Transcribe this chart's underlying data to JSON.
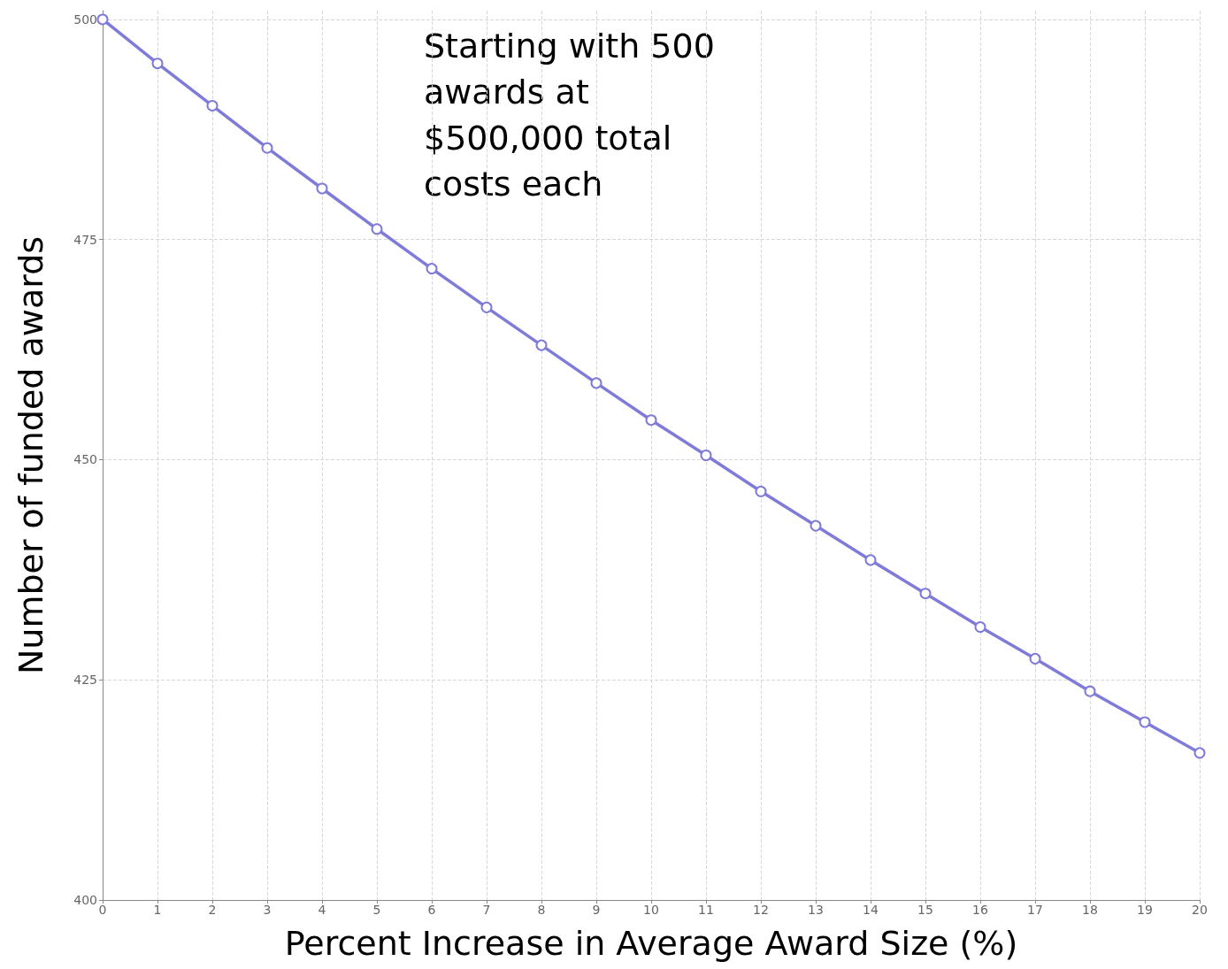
{
  "chart_data": {
    "type": "line",
    "xlabel": "Percent Increase in Average Award Size (%)",
    "ylabel": "Number of funded awards",
    "annotations": [
      "Starting with 500\nawards at\n$500,000 total\ncosts each"
    ],
    "x": [
      0,
      1,
      2,
      3,
      4,
      5,
      6,
      7,
      8,
      9,
      10,
      11,
      12,
      13,
      14,
      15,
      16,
      17,
      18,
      19,
      20
    ],
    "series": [
      {
        "color": "#7f7bd8",
        "values": [
          500,
          495.0,
          490.2,
          485.4,
          480.8,
          476.2,
          471.7,
          467.3,
          463.0,
          458.7,
          454.5,
          450.5,
          446.4,
          442.5,
          438.6,
          434.8,
          431.0,
          427.4,
          423.7,
          420.2,
          416.7
        ]
      }
    ],
    "xlim": [
      0,
      20
    ],
    "xticks": [
      0,
      1,
      2,
      3,
      4,
      5,
      6,
      7,
      8,
      9,
      10,
      11,
      12,
      13,
      14,
      15,
      16,
      17,
      18,
      19,
      20
    ],
    "ylim": [
      400,
      501
    ],
    "yticks": [
      400,
      425,
      450,
      475,
      500
    ],
    "grid": true,
    "marker": "circle",
    "line_style": "solid"
  }
}
